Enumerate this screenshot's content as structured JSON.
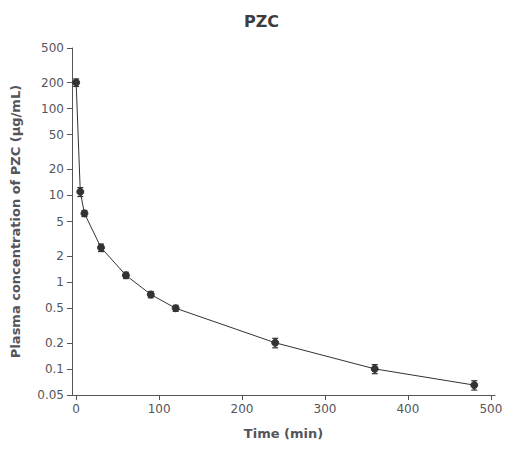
{
  "chart_data": {
    "type": "line",
    "title": "PZC",
    "x_label": "Time (min)",
    "y_label": "Plasma concentration of PZC (μg/mL)",
    "x": [
      0,
      5,
      10,
      30,
      60,
      90,
      120,
      240,
      360,
      480
    ],
    "values": [
      200,
      11,
      6.2,
      2.5,
      1.2,
      0.72,
      0.5,
      0.2,
      0.1,
      0.065
    ],
    "yerr": [
      20,
      1.3,
      0.5,
      0.25,
      0.1,
      0.06,
      0.04,
      0.025,
      0.012,
      0.008
    ],
    "xlim": [
      -5,
      505
    ],
    "ylim": [
      0.05,
      500
    ],
    "xticks": [
      0,
      100,
      200,
      300,
      400,
      500
    ],
    "yticks": [
      0.05,
      0.1,
      0.2,
      0.5,
      1,
      2,
      5,
      10,
      20,
      50,
      100,
      200,
      500
    ],
    "log": "y",
    "grid": false,
    "color": "#333333",
    "marker": "circle"
  }
}
